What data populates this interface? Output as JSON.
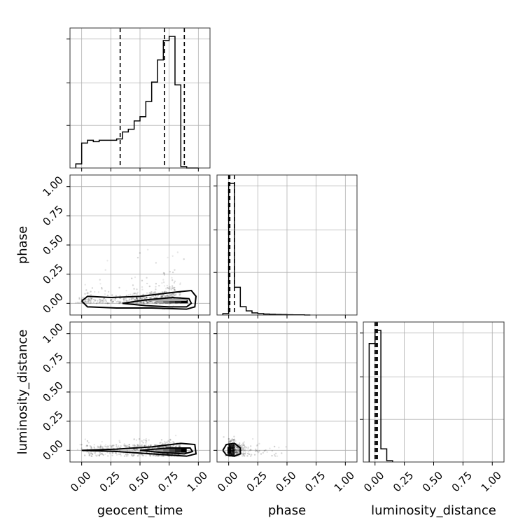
{
  "chart_data": {
    "type": "corner",
    "parameters": [
      "geocent_time",
      "phase",
      "luminosity_distance"
    ],
    "axis_range": [
      -0.1,
      1.1
    ],
    "ticks": [
      0.0,
      0.25,
      0.5,
      0.75,
      1.0
    ],
    "tick_labels": [
      "0.00",
      "0.25",
      "0.50",
      "0.75",
      "1.00"
    ],
    "grid": true,
    "style": {
      "line_color": "#000000",
      "grid_color": "#b0b0b0",
      "point_color": "#000000"
    },
    "histograms": [
      {
        "parameter": "geocent_time",
        "bin_edges": [
          -0.05,
          -0.0,
          0.05,
          0.1,
          0.15,
          0.2,
          0.25,
          0.3,
          0.35,
          0.4,
          0.45,
          0.5,
          0.55,
          0.6,
          0.65,
          0.7,
          0.75,
          0.8,
          0.85,
          0.9,
          0.95,
          1.0
        ],
        "counts": [
          3,
          18,
          20,
          19,
          20,
          20,
          20,
          21,
          26,
          28,
          34,
          37,
          48,
          62,
          78,
          92,
          95,
          60,
          1,
          0,
          0
        ],
        "quantile_lines": [
          0.33,
          0.71,
          0.88
        ]
      },
      {
        "parameter": "phase",
        "bin_edges": [
          -0.05,
          0.0,
          0.05,
          0.1,
          0.15,
          0.2,
          0.25,
          0.3,
          0.35,
          0.4,
          0.45,
          0.5,
          0.55,
          0.6,
          0.65,
          0.7
        ],
        "counts": [
          1,
          95,
          20,
          6,
          3,
          1.5,
          1,
          0.7,
          0.5,
          0.4,
          0.3,
          0.2,
          0.1,
          0.1,
          0
        ],
        "quantile_lines": [
          0.0,
          0.01,
          0.05
        ]
      },
      {
        "parameter": "luminosity_distance",
        "bin_edges": [
          -0.05,
          0.0,
          0.05,
          0.1,
          0.15
        ],
        "counts": [
          90,
          100,
          10,
          1
        ],
        "quantile_lines": [
          0.0,
          0.01,
          0.02
        ]
      }
    ],
    "pairs": [
      {
        "x": "geocent_time",
        "y": "phase",
        "density_cells": [
          {
            "x": 0.65,
            "y": 0.0,
            "w": 0.05,
            "h": 0.03,
            "v": 0.3
          },
          {
            "x": 0.7,
            "y": 0.0,
            "w": 0.05,
            "h": 0.03,
            "v": 0.5
          },
          {
            "x": 0.75,
            "y": 0.0,
            "w": 0.05,
            "h": 0.03,
            "v": 0.7
          },
          {
            "x": 0.8,
            "y": 0.0,
            "w": 0.05,
            "h": 0.03,
            "v": 0.85
          },
          {
            "x": 0.85,
            "y": 0.0,
            "w": 0.06,
            "h": 0.03,
            "v": 1.0
          },
          {
            "x": 0.6,
            "y": 0.02,
            "w": 0.3,
            "h": 0.02,
            "v": 0.25
          }
        ],
        "contours": [
          [
            [
              0.35,
              0.0
            ],
            [
              0.55,
              -0.02
            ],
            [
              0.75,
              -0.03
            ],
            [
              0.9,
              -0.03
            ],
            [
              0.94,
              0.0
            ],
            [
              0.92,
              0.04
            ],
            [
              0.78,
              0.05
            ],
            [
              0.55,
              0.03
            ],
            [
              0.35,
              0.0
            ]
          ],
          [
            [
              0.0,
              0.02
            ],
            [
              0.05,
              -0.03
            ],
            [
              0.3,
              -0.04
            ],
            [
              0.6,
              -0.04
            ],
            [
              0.9,
              -0.05
            ],
            [
              0.97,
              -0.03
            ],
            [
              0.98,
              0.06
            ],
            [
              0.94,
              0.11
            ],
            [
              0.75,
              0.09
            ],
            [
              0.5,
              0.06
            ],
            [
              0.25,
              0.05
            ],
            [
              0.05,
              0.06
            ],
            [
              0.0,
              0.02
            ]
          ]
        ]
      },
      {
        "x": "geocent_time",
        "y": "luminosity_distance",
        "density_cells": [
          {
            "x": 0.65,
            "y": -0.02,
            "w": 0.05,
            "h": 0.04,
            "v": 0.3
          },
          {
            "x": 0.7,
            "y": -0.02,
            "w": 0.05,
            "h": 0.04,
            "v": 0.5
          },
          {
            "x": 0.75,
            "y": -0.02,
            "w": 0.05,
            "h": 0.04,
            "v": 0.7
          },
          {
            "x": 0.8,
            "y": -0.02,
            "w": 0.05,
            "h": 0.04,
            "v": 0.85
          },
          {
            "x": 0.85,
            "y": -0.02,
            "w": 0.05,
            "h": 0.04,
            "v": 1.0
          }
        ],
        "contours": [
          [
            [
              0.5,
              0.0
            ],
            [
              0.7,
              -0.02
            ],
            [
              0.88,
              -0.03
            ],
            [
              0.95,
              -0.01
            ],
            [
              0.93,
              0.02
            ],
            [
              0.75,
              0.02
            ],
            [
              0.5,
              0.0
            ]
          ],
          [
            [
              0.0,
              0.0
            ],
            [
              0.3,
              -0.01
            ],
            [
              0.6,
              -0.03
            ],
            [
              0.9,
              -0.05
            ],
            [
              0.98,
              -0.03
            ],
            [
              0.97,
              0.05
            ],
            [
              0.85,
              0.06
            ],
            [
              0.6,
              0.03
            ],
            [
              0.3,
              0.01
            ],
            [
              0.0,
              0.0
            ]
          ]
        ]
      },
      {
        "x": "phase",
        "y": "luminosity_distance",
        "density_cells": [
          {
            "x": -0.01,
            "y": -0.03,
            "w": 0.03,
            "h": 0.06,
            "v": 1.0
          }
        ],
        "contours": [
          [
            [
              -0.05,
              0.0
            ],
            [
              -0.02,
              -0.04
            ],
            [
              0.05,
              -0.05
            ],
            [
              0.1,
              -0.03
            ],
            [
              0.1,
              0.02
            ],
            [
              0.05,
              0.06
            ],
            [
              -0.02,
              0.05
            ],
            [
              -0.05,
              0.0
            ]
          ]
        ]
      }
    ]
  }
}
